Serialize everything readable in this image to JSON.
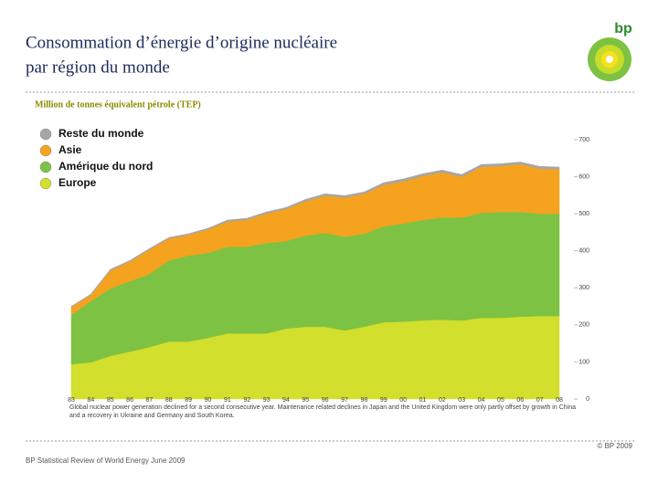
{
  "chart_data": {
    "type": "stacked-area",
    "title_lines": [
      "Consommation d’énergie d’origine nucléaire",
      "par région du monde"
    ],
    "subtitle": "Million de tonnes équivalent pétrole (TEP)",
    "logo": "bp",
    "categories": [
      "83",
      "84",
      "85",
      "86",
      "87",
      "88",
      "89",
      "90",
      "91",
      "92",
      "93",
      "94",
      "95",
      "96",
      "97",
      "98",
      "99",
      "00",
      "01",
      "02",
      "03",
      "04",
      "05",
      "06",
      "07",
      "08"
    ],
    "series": [
      {
        "name": "Europe",
        "color": "#d2df2c",
        "values": [
          94,
          99,
          116,
          128,
          140,
          155,
          155,
          165,
          177,
          177,
          177,
          190,
          195,
          195,
          185,
          195,
          207,
          209,
          212,
          214,
          212,
          219,
          219,
          222,
          224,
          224
        ]
      },
      {
        "name": "Amérique du nord",
        "color": "#7dc242",
        "values": [
          133,
          165,
          182,
          190,
          197,
          219,
          232,
          229,
          234,
          234,
          244,
          236,
          246,
          253,
          253,
          251,
          259,
          264,
          271,
          276,
          278,
          283,
          286,
          283,
          276,
          276
        ]
      },
      {
        "name": "Asie",
        "color": "#f5a21f",
        "values": [
          21,
          17,
          49,
          53,
          66,
          59,
          56,
          64,
          68,
          73,
          80,
          87,
          93,
          101,
          106,
          108,
          112,
          115,
          119,
          122,
          110,
          125,
          124,
          129,
          122,
          120
        ]
      },
      {
        "name": "Reste du monde",
        "color": "#a6a6a6",
        "values": [
          2,
          2,
          3,
          3,
          3,
          3,
          3,
          3,
          4,
          4,
          4,
          4,
          5,
          5,
          5,
          5,
          6,
          6,
          6,
          6,
          6,
          6,
          6,
          6,
          6,
          6
        ]
      }
    ],
    "ylim": [
      0,
      700
    ],
    "yticks": [
      0,
      100,
      200,
      300,
      400,
      500,
      600,
      700
    ],
    "grid": false,
    "legend": "top-left",
    "footnote": "Global nuclear power generation declined for a second consecutive year. Maintenance related declines in Japan and the United Kingdom were only partly offset by growth in China and a recovery in Ukraine and Germany and South Korea.",
    "copyright": "© BP 2009",
    "source": "BP Statistical Review of World Energy June 2009"
  }
}
